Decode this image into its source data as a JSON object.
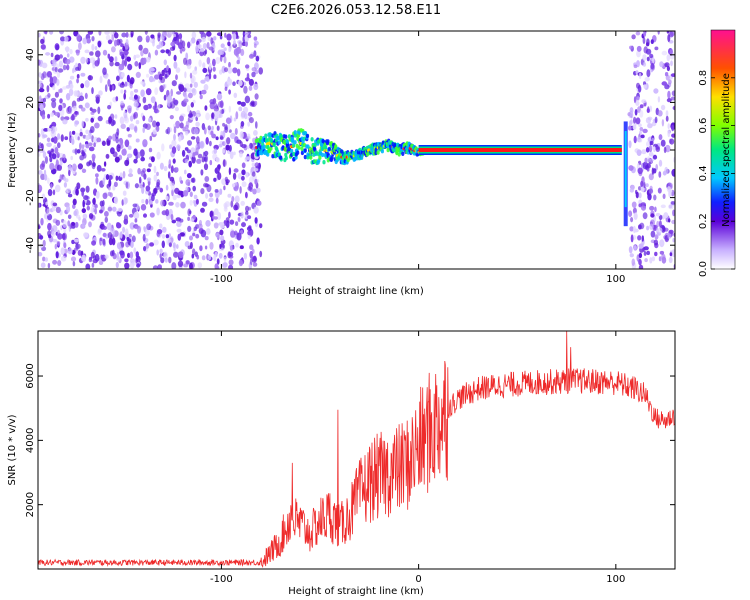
{
  "title": "C2E6.2026.053.12.58.E11",
  "chart_data": [
    {
      "type": "heatmap",
      "xlabel": "Height of straight line (km)",
      "ylabel": "Frequency (Hz)",
      "xlim": [
        -193,
        130
      ],
      "ylim": [
        -50,
        50
      ],
      "xticks": [
        -100,
        0,
        100
      ],
      "xtick_labels": [
        "-100",
        "",
        "100"
      ],
      "yticks": [
        -40,
        -20,
        0,
        20,
        40
      ],
      "ytick_labels": [
        "-40",
        "-20",
        "0",
        "20",
        "40"
      ],
      "noise_regions": [
        [
          -193,
          -80
        ],
        [
          107,
          130
        ]
      ],
      "signal_track": {
        "x": [
          -82,
          -75,
          -68,
          -60,
          -52,
          -45,
          -40,
          -35,
          -30,
          -25,
          -20,
          -15,
          -10,
          -5,
          0,
          5,
          10,
          20,
          40,
          60,
          80,
          100,
          103
        ],
        "freq": [
          1,
          3,
          0,
          3,
          -1,
          0,
          -3,
          -3,
          -2,
          0,
          1,
          2,
          0,
          1,
          -1,
          0,
          0,
          0,
          0,
          0,
          0,
          0,
          0
        ],
        "spread": [
          3,
          5,
          6,
          6,
          6,
          4,
          3,
          2,
          2,
          2,
          2,
          2,
          2,
          2,
          1,
          1,
          1,
          1,
          1,
          1,
          1,
          1,
          1
        ]
      },
      "colorbar": {
        "label": "Normalized spectral amplitude",
        "range": [
          0,
          1
        ],
        "ticks": [
          0.0,
          0.2,
          0.4,
          0.6,
          0.8
        ],
        "tick_labels": [
          "0.0",
          "0.2",
          "0.4",
          "0.6",
          "0.8"
        ]
      }
    },
    {
      "type": "line",
      "xlabel": "Height of straight line (km)",
      "ylabel": "SNR (10 * v/v)",
      "xlim": [
        -193,
        130
      ],
      "ylim": [
        0,
        7400
      ],
      "xticks": [
        -100,
        0,
        100
      ],
      "xtick_labels": [
        "-100",
        "0",
        "100"
      ],
      "yticks": [
        2000,
        4000,
        6000
      ],
      "ytick_labels": [
        "2000",
        "4000",
        "6000"
      ],
      "color": "#ee2a2a",
      "envelope": {
        "x": [
          -193,
          -80,
          -75,
          -70,
          -65,
          -60,
          -55,
          -50,
          -45,
          -40,
          -35,
          -30,
          -25,
          -20,
          -15,
          -10,
          -5,
          0,
          5,
          10,
          15,
          20,
          30,
          40,
          60,
          80,
          100,
          110,
          115,
          120,
          125,
          130
        ],
        "y": [
          200,
          200,
          500,
          900,
          1600,
          1400,
          1100,
          1500,
          1700,
          1300,
          1700,
          2300,
          2700,
          2900,
          3000,
          3100,
          3300,
          3800,
          4200,
          4600,
          5000,
          5300,
          5600,
          5700,
          5800,
          5850,
          5800,
          5600,
          5400,
          4700,
          4600,
          4800
        ]
      },
      "spikes": [
        {
          "x": -64,
          "y": 3300
        },
        {
          "x": -41,
          "y": 4950
        },
        {
          "x": -33,
          "y": 2000
        },
        {
          "x": -20,
          "y": 3200
        },
        {
          "x": 5,
          "y": 5200
        },
        {
          "x": 75,
          "y": 7400
        },
        {
          "x": 77,
          "y": 6900
        }
      ]
    }
  ]
}
